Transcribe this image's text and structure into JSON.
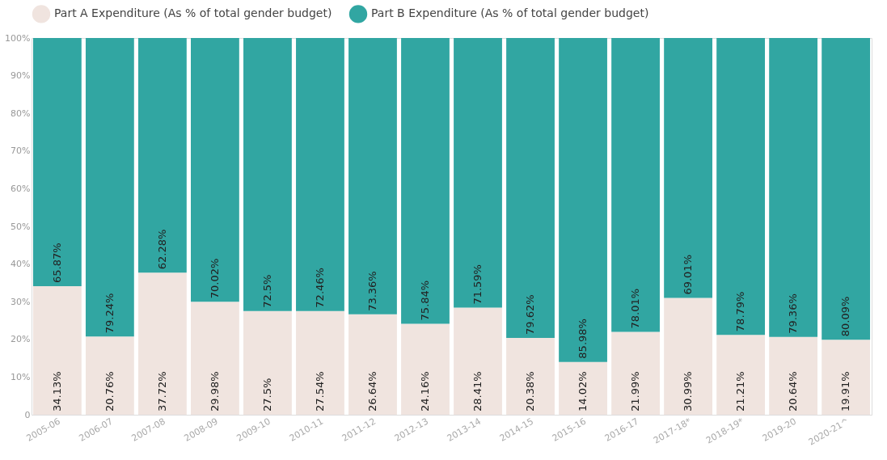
{
  "chart_data": {
    "type": "bar",
    "stacked": true,
    "legend": "top left",
    "grid": false,
    "categories": [
      "2005-06",
      "2006-07",
      "2007-08",
      "2008-09",
      "2009-10",
      "2010-11",
      "2011-12",
      "2012-13",
      "2013-14",
      "2014-15",
      "2015-16",
      "2016-17",
      "2017-18*",
      "2018-19*",
      "2019-20",
      "2020-21^"
    ],
    "ylim": [
      0,
      100
    ],
    "yticks": [
      0,
      {
        "value": 10,
        "label": "10%"
      },
      {
        "value": 20,
        "label": "20%"
      },
      {
        "value": 30,
        "label": "30%"
      },
      {
        "value": 40,
        "label": "40%"
      },
      {
        "value": 50,
        "label": "50%"
      },
      {
        "value": 60,
        "label": "60%"
      },
      {
        "value": 70,
        "label": "70%"
      },
      {
        "value": 80,
        "label": "80%"
      },
      {
        "value": 90,
        "label": "90%"
      },
      {
        "value": 100,
        "label": "100%"
      }
    ],
    "series": [
      {
        "name": "Part A Expenditure (As % of total gender budget)",
        "color": "#f0e4df",
        "values": [
          34.13,
          20.76,
          37.72,
          29.98,
          27.5,
          27.54,
          26.64,
          24.16,
          28.41,
          20.38,
          14.02,
          21.99,
          30.99,
          21.21,
          20.64,
          19.91
        ],
        "value_labels": [
          "34.13%",
          "20.76%",
          "37.72%",
          "29.98%",
          "27.5%",
          "27.54%",
          "26.64%",
          "24.16%",
          "28.41%",
          "20.38%",
          "14.02%",
          "21.99%",
          "30.99%",
          "21.21%",
          "20.64%",
          "19.91%"
        ]
      },
      {
        "name": "Part B Expenditure (As % of total gender budget)",
        "color": "#31a6a2",
        "values": [
          65.87,
          79.24,
          62.28,
          70.02,
          72.5,
          72.46,
          73.36,
          75.84,
          71.59,
          79.62,
          85.98,
          78.01,
          69.01,
          78.79,
          79.36,
          80.09
        ],
        "value_labels": [
          "65.87%",
          "79.24%",
          "62.28%",
          "70.02%",
          "72.5%",
          "72.46%",
          "73.36%",
          "75.84%",
          "71.59%",
          "79.62%",
          "85.98%",
          "78.01%",
          "69.01%",
          "78.79%",
          "79.36%",
          "80.09%"
        ]
      }
    ]
  }
}
